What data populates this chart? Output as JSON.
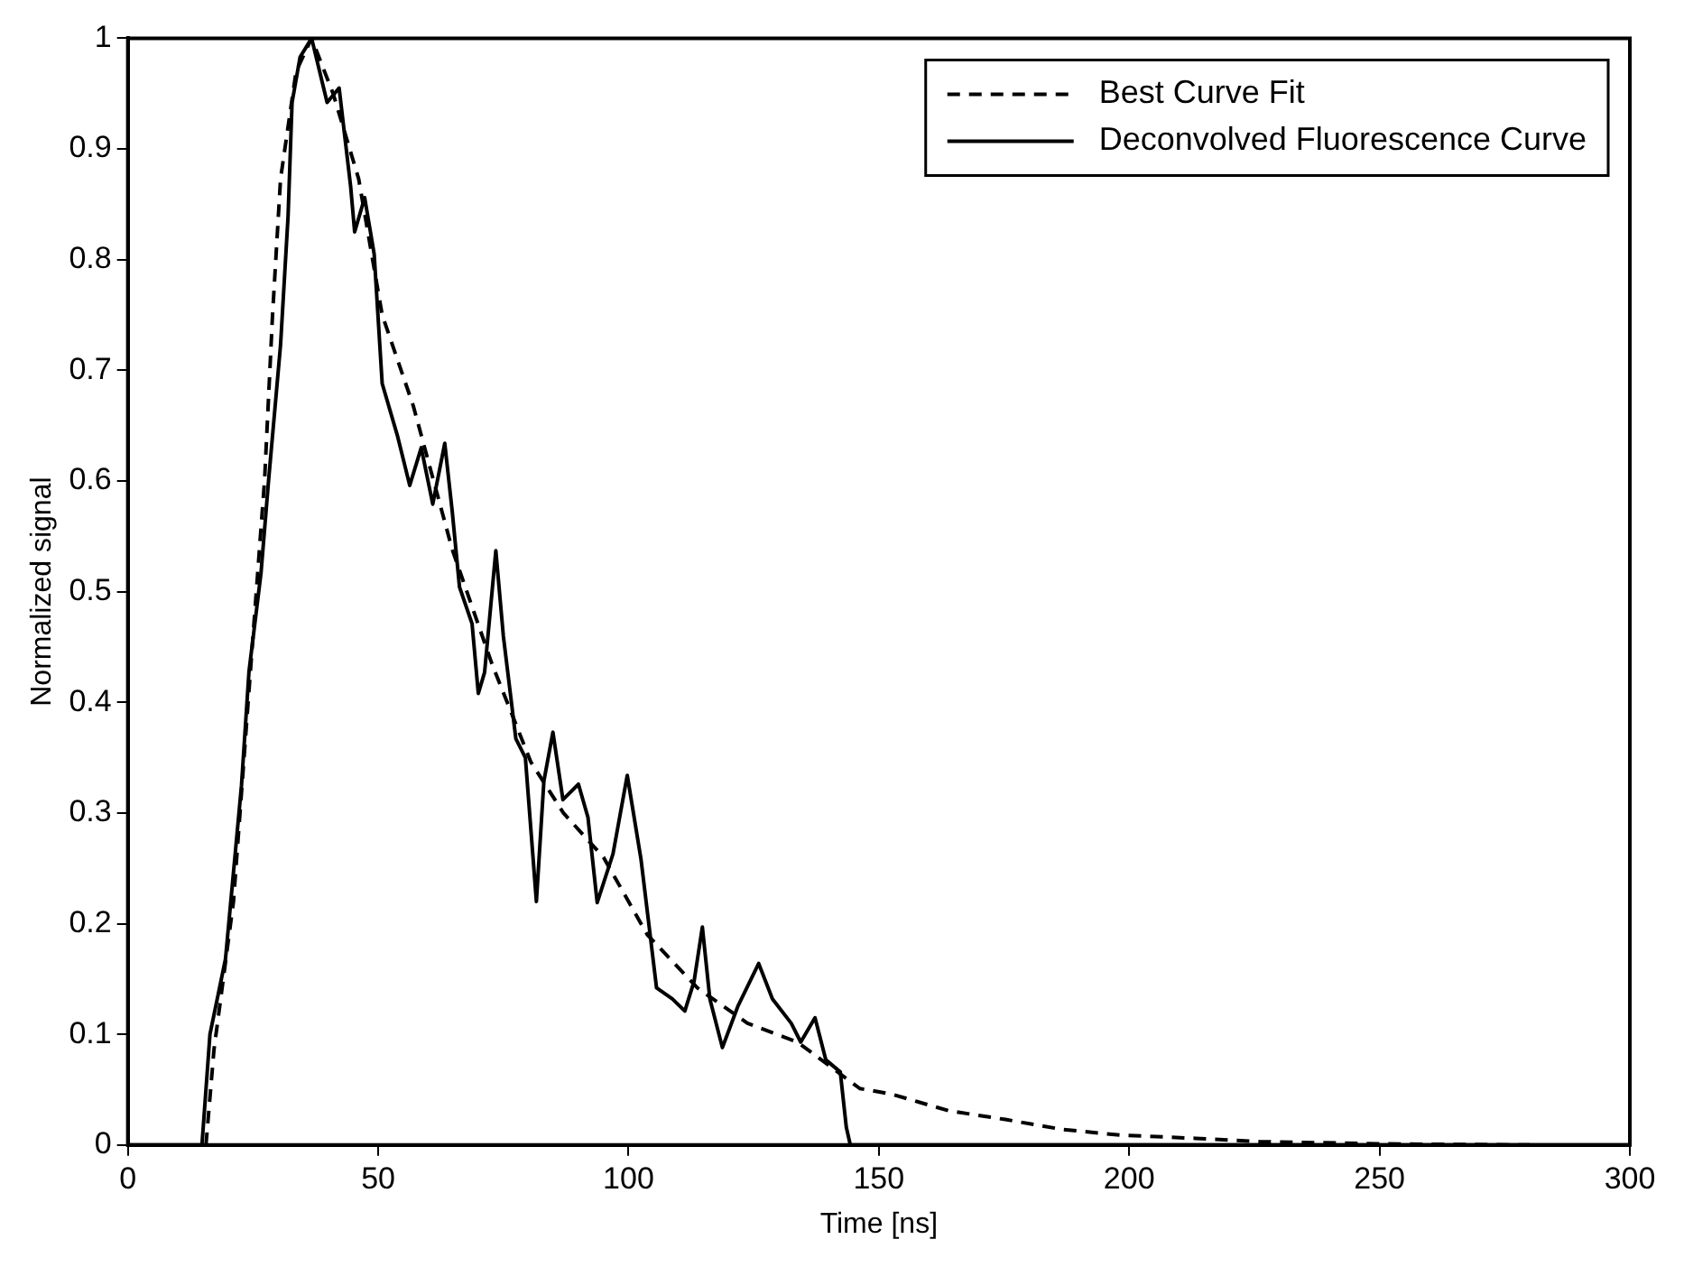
{
  "chart_data": {
    "type": "line",
    "xlabel": "Time [ns]",
    "ylabel": "Normalized signal",
    "xlim": [
      0,
      300
    ],
    "xticks": [
      0,
      50,
      100,
      150,
      200,
      250,
      300
    ],
    "ylim": [
      0,
      1
    ],
    "yticks": [
      0,
      0.1,
      0.2,
      0.3,
      0.4,
      0.5,
      0.6,
      0.7,
      0.8,
      0.9,
      1
    ],
    "grid": false,
    "legend": "top right",
    "marker": "none",
    "series": [
      {
        "name": "Best Curve Fit",
        "color": "#000000",
        "line_style": "dashed",
        "x": [
          15.6,
          17.2,
          21.1,
          25,
          27.3,
          28.9,
          30.5,
          33.6,
          36.7,
          41,
          46.1,
          50.8,
          57,
          64.8,
          72.7,
          80.5,
          87,
          95,
          103.75,
          113.75,
          123.75,
          133.75,
          146.2,
          152.5,
          163.9,
          175.3,
          186.7,
          198.1,
          213.3,
          226,
          251,
          280
        ],
        "values": [
          0,
          0.086,
          0.22,
          0.46,
          0.6,
          0.75,
          0.873,
          0.97,
          1,
          0.95,
          0.873,
          0.75,
          0.668,
          0.538,
          0.435,
          0.346,
          0.3,
          0.26,
          0.19,
          0.142,
          0.11,
          0.093,
          0.051,
          0.046,
          0.031,
          0.023,
          0.014,
          0.009,
          0.006,
          0.003,
          0.001,
          0
        ]
      },
      {
        "name": "Deconvolved Fluorescence Curve",
        "color": "#000000",
        "line_style": "solid",
        "x": [
          0,
          14.8,
          16.4,
          19.5,
          22.7,
          24.2,
          26.6,
          28.1,
          30.5,
          32,
          32.8,
          34.4,
          36.7,
          39.8,
          42.2,
          44.5,
          45.3,
          47.3,
          49.2,
          50.8,
          53.9,
          56.3,
          58.6,
          60.9,
          63.3,
          64.8,
          66.25,
          68.75,
          70,
          71.25,
          73.5,
          75,
          77.5,
          79.4,
          81.6,
          83.1,
          84.9,
          86.9,
          90,
          91.9,
          93.75,
          96.9,
          99.75,
          102.5,
          105.6,
          108.75,
          111.25,
          113.1,
          114.75,
          116.25,
          118.75,
          121.9,
          126,
          128.75,
          132.5,
          134.4,
          137.25,
          139.4,
          142.3,
          143.5,
          144.3,
          300
        ],
        "values": [
          0,
          0,
          0.1,
          0.168,
          0.325,
          0.428,
          0.517,
          0.6,
          0.723,
          0.839,
          0.942,
          0.983,
          1,
          0.942,
          0.955,
          0.866,
          0.825,
          0.856,
          0.805,
          0.688,
          0.64,
          0.596,
          0.63,
          0.579,
          0.634,
          0.572,
          0.504,
          0.471,
          0.408,
          0.427,
          0.537,
          0.46,
          0.367,
          0.35,
          0.22,
          0.329,
          0.373,
          0.312,
          0.326,
          0.296,
          0.219,
          0.263,
          0.334,
          0.258,
          0.142,
          0.132,
          0.121,
          0.148,
          0.197,
          0.132,
          0.088,
          0.126,
          0.164,
          0.132,
          0.11,
          0.093,
          0.115,
          0.077,
          0.066,
          0.016,
          0,
          0
        ]
      }
    ]
  }
}
